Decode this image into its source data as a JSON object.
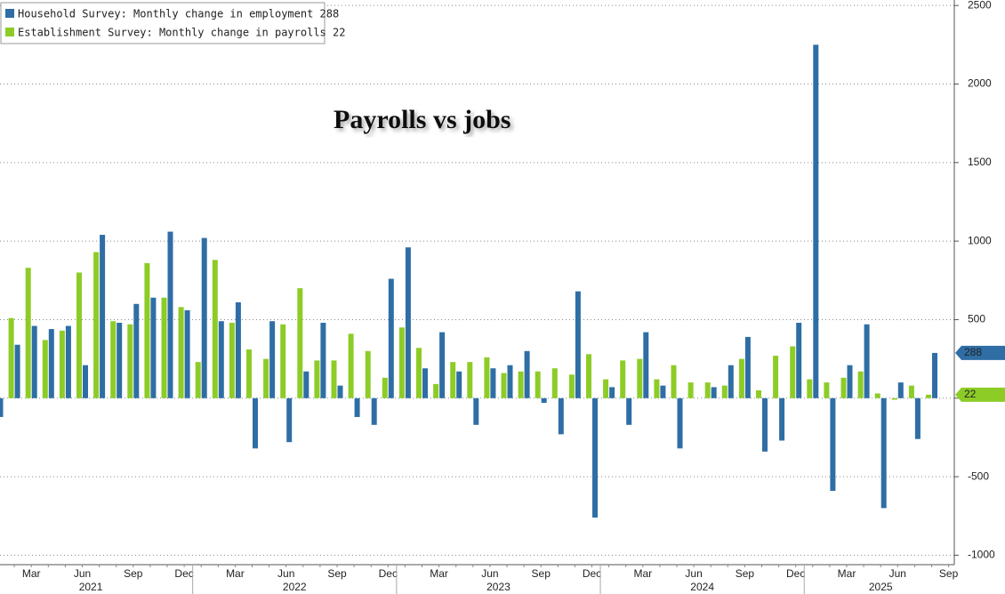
{
  "chart_data": {
    "type": "bar",
    "title": "Payrolls vs jobs",
    "categories": [
      null,
      null,
      "Mar",
      null,
      null,
      "Jun",
      null,
      null,
      "Sep",
      null,
      null,
      "Dec",
      null,
      null,
      "Mar",
      null,
      null,
      "Jun",
      null,
      null,
      "Sep",
      null,
      null,
      "Dec",
      null,
      null,
      "Mar",
      null,
      null,
      "Jun",
      null,
      null,
      "Sep",
      null,
      null,
      "Dec",
      null,
      null,
      "Mar",
      null,
      null,
      "Jun",
      null,
      null,
      "Sep",
      null,
      null,
      "Dec",
      null,
      null,
      "Mar",
      null,
      null,
      "Jun",
      null,
      null,
      "Sep"
    ],
    "years": [
      "2021",
      "2022",
      "2023",
      "2024",
      "2025"
    ],
    "series": [
      {
        "name": "Household Survey: Monthly change in employment 288",
        "color": "#2f6ea5",
        "values": [
          -120,
          340,
          460,
          440,
          460,
          210,
          1040,
          480,
          600,
          640,
          1060,
          560,
          1020,
          490,
          610,
          -320,
          490,
          -280,
          170,
          480,
          80,
          -120,
          -170,
          760,
          960,
          190,
          420,
          170,
          -170,
          190,
          210,
          300,
          -30,
          -230,
          680,
          -760,
          70,
          -170,
          420,
          80,
          -320,
          0,
          70,
          210,
          390,
          -340,
          -270,
          480,
          2250,
          -590,
          210,
          470,
          -700,
          100,
          -260,
          288,
          null
        ]
      },
      {
        "name": "Establishment Survey: Monthly change in payrolls 22",
        "color": "#8dcc27",
        "values": [
          null,
          510,
          830,
          370,
          430,
          800,
          930,
          490,
          470,
          860,
          640,
          580,
          230,
          880,
          480,
          310,
          250,
          470,
          700,
          240,
          240,
          410,
          300,
          130,
          450,
          320,
          90,
          230,
          230,
          260,
          160,
          170,
          170,
          190,
          150,
          280,
          120,
          240,
          250,
          120,
          210,
          100,
          100,
          80,
          250,
          50,
          270,
          330,
          120,
          100,
          130,
          170,
          30,
          -10,
          80,
          22,
          null
        ]
      }
    ],
    "ylim": [
      -1060,
      2535
    ],
    "yticks": [
      -1000,
      -500,
      0,
      500,
      1000,
      1500,
      2000,
      2500
    ],
    "grid": true
  }
}
